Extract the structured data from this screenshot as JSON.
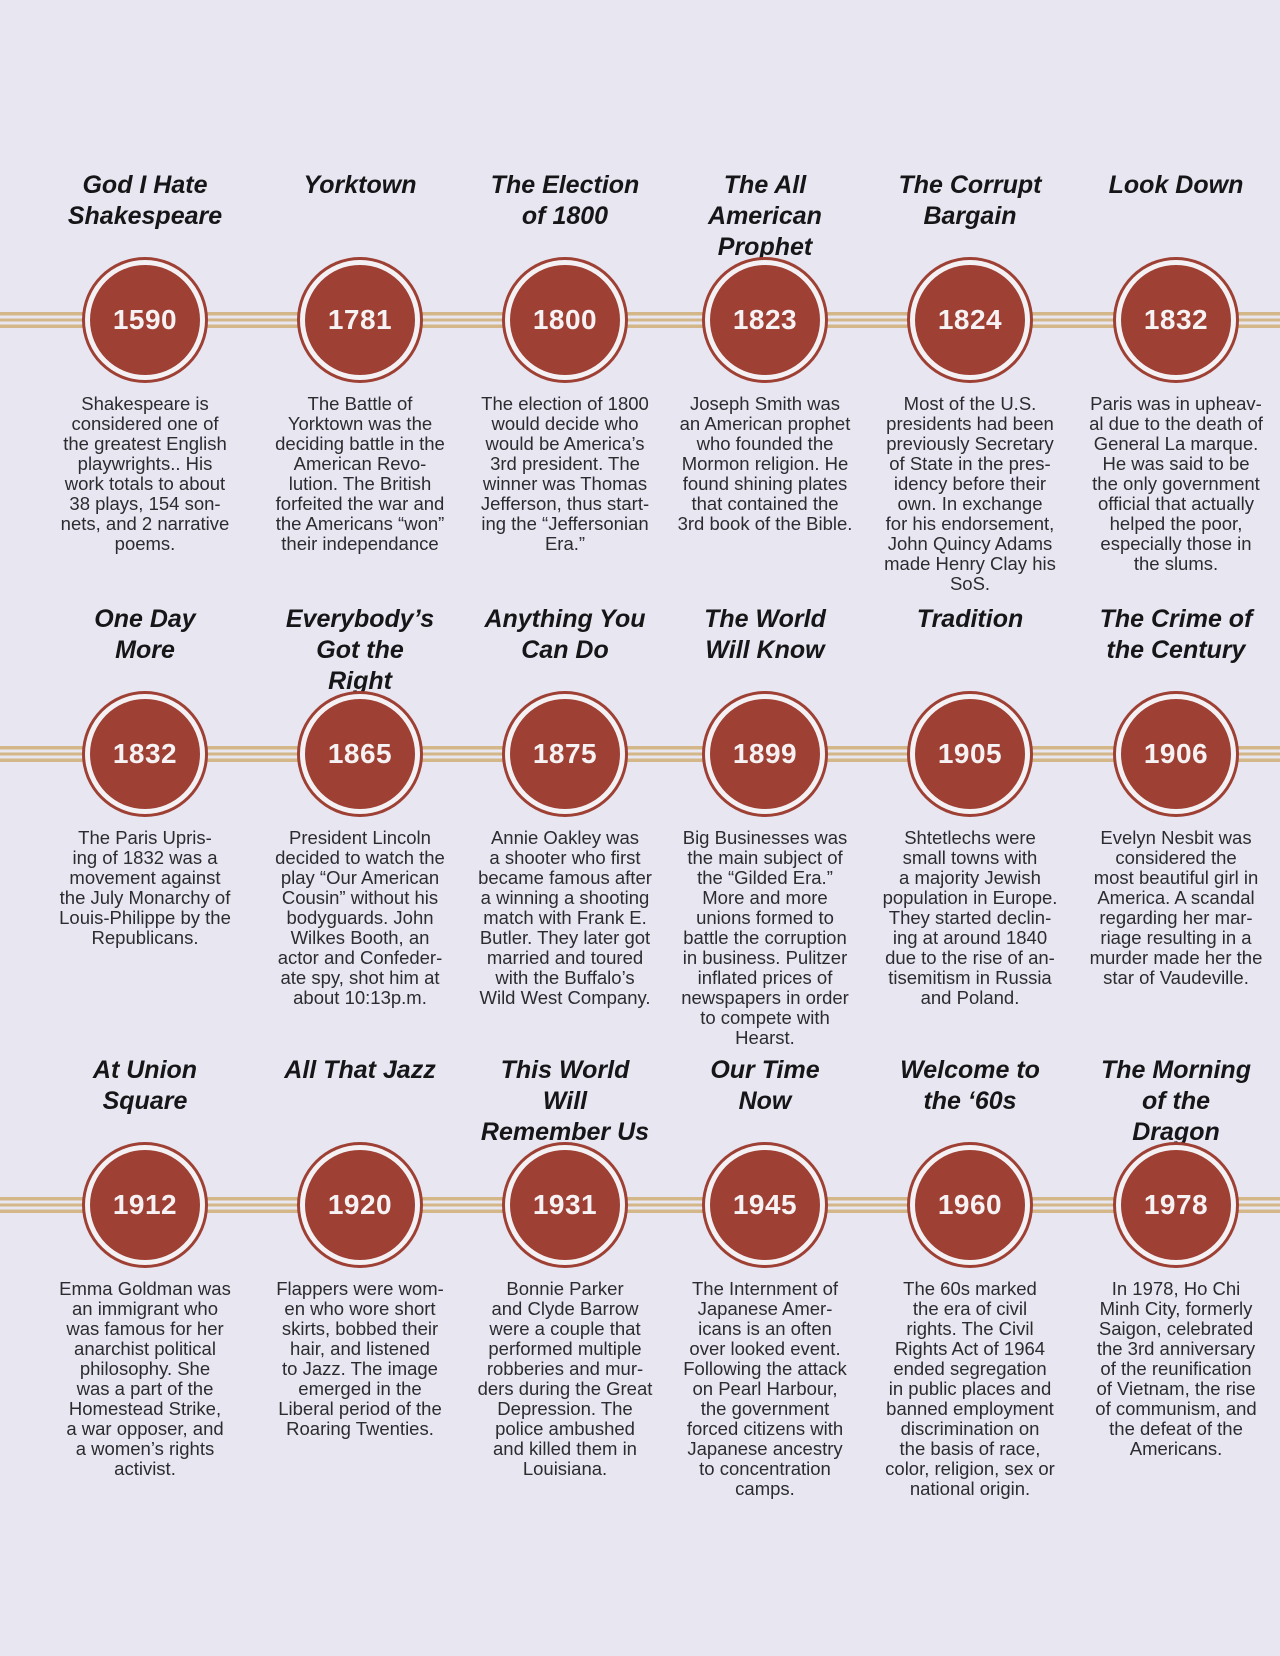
{
  "colors": {
    "background": "#e8e6f0",
    "circle_fill": "#9e4034",
    "circle_ring": "#f4f1f5",
    "timeline_line": "#d3b788",
    "title_text": "#161618",
    "year_text": "#f6f2f4",
    "description_text": "#2b2b30"
  },
  "timeline": {
    "rows": [
      {
        "events": [
          {
            "title": "God I Hate\nShakespeare",
            "year": "1590",
            "desc": "Shakespeare is\nconsidered one of\nthe greatest English\nplaywrights.. His\nwork totals to about\n38 plays, 154 son-\nnets, and 2 narrative\npoems."
          },
          {
            "title": "Yorktown",
            "year": "1781",
            "desc": "The Battle of\nYorktown was the\ndeciding battle in the\nAmerican Revo-\nlution. The British\nforfeited the war and\nthe Americans “won”\ntheir independance"
          },
          {
            "title": "The Election\nof 1800",
            "year": "1800",
            "desc": "The election of 1800\nwould decide who\nwould be America’s\n3rd president. The\nwinner was Thomas\nJefferson, thus start-\ning the “Jeffersonian\nEra.”"
          },
          {
            "title": "The All\nAmerican\nProphet",
            "year": "1823",
            "desc": "Joseph Smith was\nan American prophet\nwho founded the\nMormon religion. He\nfound shining plates\nthat contained the\n3rd book of the Bible."
          },
          {
            "title": "The Corrupt\nBargain",
            "year": "1824",
            "desc": "Most of the U.S.\npresidents had been\npreviously Secretary\nof State in the pres-\nidency before their\nown. In exchange\nfor his endorsement,\nJohn Quincy Adams\nmade Henry Clay his\nSoS."
          },
          {
            "title": "Look Down",
            "year": "1832",
            "desc": "Paris was in upheav-\nal due to the death of\nGeneral La marque.\nHe was said to be\nthe only government\nofficial that actually\nhelped the poor,\nespecially those in\nthe slums."
          }
        ]
      },
      {
        "events": [
          {
            "title": "One Day\nMore",
            "year": "1832",
            "desc": "The Paris Upris-\ning of 1832 was a\nmovement against\nthe July Monarchy of\nLouis-Philippe by the\nRepublicans."
          },
          {
            "title": "Everybody’s\nGot the\nRight",
            "year": "1865",
            "desc": "President Lincoln\ndecided to watch the\nplay “Our American\nCousin” without his\nbodyguards. John\nWilkes Booth, an\nactor and Confeder-\nate spy, shot him at\nabout 10:13p.m."
          },
          {
            "title": "Anything You\nCan Do",
            "year": "1875",
            "desc": "Annie Oakley was\na shooter who first\nbecame famous after\na winning a shooting\nmatch with Frank E.\nButler. They later got\nmarried and toured\nwith the Buffalo’s\nWild West Company."
          },
          {
            "title": "The World\nWill Know",
            "year": "1899",
            "desc": "Big Businesses was\nthe main subject of\nthe “Gilded Era.”\nMore and more\nunions formed to\nbattle the corruption\nin business. Pulitzer\ninflated prices of\nnewspapers in order\nto compete with\nHearst."
          },
          {
            "title": "Tradition",
            "year": "1905",
            "desc": "Shtetlechs were\nsmall towns with\na majority Jewish\npopulation in Europe.\nThey started declin-\ning at around 1840\ndue to the rise of an-\ntisemitism in Russia\nand Poland."
          },
          {
            "title": "The Crime of\nthe Century",
            "year": "1906",
            "desc": "Evelyn Nesbit was\nconsidered the\nmost beautiful girl in\nAmerica. A scandal\nregarding her mar-\nriage resulting in a\nmurder made her the\nstar of Vaudeville."
          }
        ]
      },
      {
        "events": [
          {
            "title": "At Union\nSquare",
            "year": "1912",
            "desc": "Emma Goldman was\nan immigrant who\nwas famous for her\nanarchist political\nphilosophy. She\nwas a part of the\nHomestead Strike,\na war opposer, and\na women’s rights\nactivist."
          },
          {
            "title": "All That Jazz",
            "year": "1920",
            "desc": "Flappers were wom-\nen who wore short\nskirts, bobbed their\nhair, and listened\nto Jazz. The image\nemerged in the\nLiberal period of the\nRoaring Twenties."
          },
          {
            "title": "This World\nWill\nRemember Us",
            "year": "1931",
            "desc": "Bonnie Parker\nand Clyde Barrow\nwere a couple that\nperformed multiple\nrobberies and mur-\nders during the Great\nDepression. The\npolice ambushed\nand killed them in\nLouisiana."
          },
          {
            "title": "Our Time\nNow",
            "year": "1945",
            "desc": "The Internment of\nJapanese Amer-\nicans is an often\nover looked event.\nFollowing the attack\non Pearl Harbour,\nthe government\nforced citizens with\nJapanese ancestry\nto concentration\ncamps."
          },
          {
            "title": "Welcome to\nthe ‘60s",
            "year": "1960",
            "desc": "The 60s marked\nthe era of civil\nrights. The Civil\nRights Act of 1964\nended segregation\nin public places and\nbanned employment\ndiscrimination on\nthe basis of race,\ncolor, religion, sex or\nnational origin."
          },
          {
            "title": "The Morning\nof the\nDragon",
            "year": "1978",
            "desc": "In 1978, Ho Chi\nMinh City, formerly\nSaigon, celebrated\nthe 3rd anniversary\nof the reunification\nof Vietnam, the rise\nof communism, and\nthe defeat of the\nAmericans."
          }
        ]
      }
    ]
  }
}
